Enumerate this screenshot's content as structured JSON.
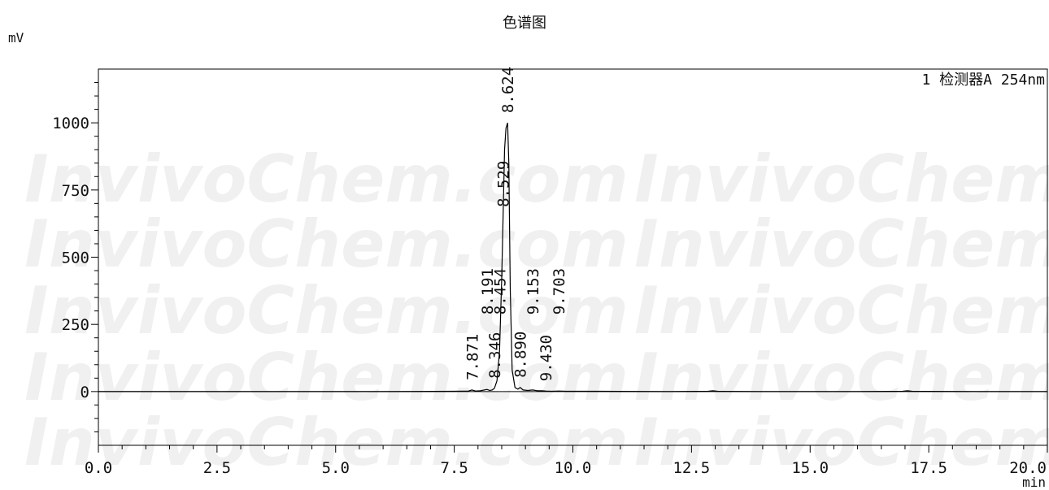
{
  "chart_data": {
    "type": "line",
    "title": "色谱图",
    "ylabel": "mV",
    "xlabel": "min",
    "xlim": [
      0.0,
      20.0
    ],
    "ylim": [
      -200,
      1200
    ],
    "x_ticks": [
      "0.0",
      "2.5",
      "5.0",
      "7.5",
      "10.0",
      "12.5",
      "15.0",
      "17.5",
      "20.0"
    ],
    "y_ticks": [
      "0",
      "250",
      "500",
      "750",
      "1000"
    ],
    "legend": "1 检测器A 254nm",
    "legend_position": "top-right",
    "grid": false,
    "watermark": "InvivoChem.com",
    "series": [
      {
        "name": "1 检测器A 254nm",
        "x": [
          0.0,
          2.0,
          4.0,
          6.0,
          7.5,
          7.8,
          7.871,
          7.95,
          8.05,
          8.191,
          8.25,
          8.3,
          8.346,
          8.4,
          8.454,
          8.5,
          8.529,
          8.56,
          8.59,
          8.624,
          8.65,
          8.68,
          8.72,
          8.78,
          8.84,
          8.89,
          8.95,
          9.05,
          9.153,
          9.25,
          9.35,
          9.43,
          9.55,
          9.703,
          9.85,
          10.5,
          12.0,
          12.85,
          12.95,
          13.05,
          14.0,
          16.0,
          16.95,
          17.05,
          17.15,
          18.5,
          20.0
        ],
        "y": [
          0,
          0,
          0,
          0,
          1,
          2,
          6,
          2,
          3,
          8,
          4,
          6,
          12,
          40,
          150,
          420,
          650,
          900,
          980,
          1000,
          850,
          380,
          80,
          15,
          9,
          15,
          6,
          4,
          6,
          3,
          3,
          2,
          1,
          2,
          1,
          1,
          0,
          1,
          3,
          1,
          0,
          0,
          1,
          3,
          1,
          0,
          0
        ]
      }
    ],
    "peak_labels": [
      {
        "rt": "7.871",
        "x": 7.871,
        "y": 6
      },
      {
        "rt": "8.191",
        "x": 8.191,
        "y": 250
      },
      {
        "rt": "8.346",
        "x": 8.346,
        "y": 12
      },
      {
        "rt": "8.454",
        "x": 8.454,
        "y": 250
      },
      {
        "rt": "8.529",
        "x": 8.529,
        "y": 650
      },
      {
        "rt": "8.624",
        "x": 8.624,
        "y": 1000
      },
      {
        "rt": "8.890",
        "x": 8.89,
        "y": 15
      },
      {
        "rt": "9.153",
        "x": 9.153,
        "y": 250
      },
      {
        "rt": "9.430",
        "x": 9.43,
        "y": 2
      },
      {
        "rt": "9.703",
        "x": 9.703,
        "y": 250
      }
    ]
  }
}
